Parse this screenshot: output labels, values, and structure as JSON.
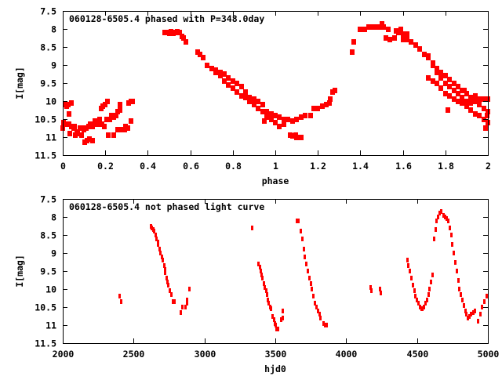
{
  "colors": {
    "points": "#ff0000",
    "axes": "#000000"
  },
  "chart_data": [
    {
      "type": "scatter",
      "title": "060128-6505.4 phased with P=348.0day",
      "xlabel": "phase",
      "ylabel": "I[mag]",
      "xlim": [
        0,
        2
      ],
      "ylim": [
        7.5,
        11.5
      ],
      "y_reversed": true,
      "xticks": [
        0,
        0.2,
        0.4,
        0.6,
        0.8,
        1,
        1.2,
        1.4,
        1.6,
        1.8,
        2
      ],
      "xtick_labels": [
        "0",
        "0.2",
        "0.4",
        "0.6",
        "0.8",
        "1",
        "1.2",
        "1.4",
        "1.6",
        "1.8",
        "2"
      ],
      "yticks": [
        7.5,
        8,
        8.5,
        9,
        9.5,
        10,
        10.5,
        11,
        11.5
      ],
      "ytick_labels": [
        "7.5",
        "8",
        "8.5",
        "9",
        "9.5",
        "10",
        "10.5",
        "11",
        "11.5"
      ],
      "grid": false,
      "points": [
        [
          0,
          10.75
        ],
        [
          0.005,
          10.6
        ],
        [
          0.01,
          10.1
        ],
        [
          0.015,
          10.65
        ],
        [
          0.02,
          10.15
        ],
        [
          0.025,
          10.1
        ],
        [
          0.03,
          10.35
        ],
        [
          0.03,
          10.65
        ],
        [
          0.035,
          10.9
        ],
        [
          0.04,
          10.7
        ],
        [
          0.04,
          10.05
        ],
        [
          0.05,
          10.75
        ],
        [
          0.055,
          10.7
        ],
        [
          0.06,
          10.95
        ],
        [
          0.065,
          10.85
        ],
        [
          0.07,
          10.9
        ],
        [
          0.08,
          10.75
        ],
        [
          0.09,
          10.75
        ],
        [
          0.09,
          10.95
        ],
        [
          0.1,
          10.8
        ],
        [
          0.105,
          11.15
        ],
        [
          0.11,
          10.75
        ],
        [
          0.115,
          11.1
        ],
        [
          0.12,
          10.7
        ],
        [
          0.125,
          11.05
        ],
        [
          0.13,
          10.65
        ],
        [
          0.14,
          11.1
        ],
        [
          0.14,
          10.7
        ],
        [
          0.15,
          10.55
        ],
        [
          0.16,
          10.65
        ],
        [
          0.17,
          10.65
        ],
        [
          0.175,
          10.5
        ],
        [
          0.18,
          10.2
        ],
        [
          0.185,
          10.65
        ],
        [
          0.19,
          10.15
        ],
        [
          0.195,
          10.7
        ],
        [
          0.2,
          10.1
        ],
        [
          0.205,
          10.5
        ],
        [
          0.21,
          10.0
        ],
        [
          0.215,
          10.95
        ],
        [
          0.22,
          10.5
        ],
        [
          0.23,
          10.4
        ],
        [
          0.24,
          10.45
        ],
        [
          0.24,
          10.95
        ],
        [
          0.25,
          10.4
        ],
        [
          0.26,
          10.3
        ],
        [
          0.26,
          10.8
        ],
        [
          0.27,
          10.25
        ],
        [
          0.27,
          10.1
        ],
        [
          0.28,
          10.8
        ],
        [
          0.29,
          10.8
        ],
        [
          0.295,
          10.7
        ],
        [
          0.305,
          10.75
        ],
        [
          0.31,
          10.05
        ],
        [
          0.32,
          10.0
        ],
        [
          0.32,
          10.55
        ],
        [
          0.33,
          10.0
        ],
        [
          0.48,
          8.1
        ],
        [
          0.49,
          8.1
        ],
        [
          0.5,
          8.12
        ],
        [
          0.51,
          8.08
        ],
        [
          0.52,
          8.12
        ],
        [
          0.53,
          8.1
        ],
        [
          0.54,
          8.08
        ],
        [
          0.55,
          8.1
        ],
        [
          0.56,
          8.2
        ],
        [
          0.57,
          8.25
        ],
        [
          0.58,
          8.35
        ],
        [
          0.635,
          8.65
        ],
        [
          0.645,
          8.7
        ],
        [
          0.66,
          8.8
        ],
        [
          0.68,
          9.0
        ],
        [
          0.7,
          9.1
        ],
        [
          0.72,
          9.2
        ],
        [
          0.74,
          9.3
        ],
        [
          0.76,
          9.45
        ],
        [
          0.78,
          9.55
        ],
        [
          0.8,
          9.65
        ],
        [
          0.82,
          9.75
        ],
        [
          0.84,
          9.85
        ],
        [
          0.86,
          9.9
        ],
        [
          0.88,
          10.0
        ],
        [
          0.9,
          10.1
        ],
        [
          0.92,
          10.2
        ],
        [
          0.94,
          10.3
        ],
        [
          0.96,
          10.4
        ],
        [
          0.98,
          10.5
        ],
        [
          1.0,
          10.6
        ],
        [
          1.02,
          10.7
        ],
        [
          1.04,
          10.65
        ],
        [
          0.72,
          9.15
        ],
        [
          0.74,
          9.2
        ],
        [
          0.76,
          9.25
        ],
        [
          0.78,
          9.35
        ],
        [
          0.8,
          9.45
        ],
        [
          0.82,
          9.5
        ],
        [
          0.84,
          9.6
        ],
        [
          0.86,
          9.75
        ],
        [
          0.88,
          9.9
        ],
        [
          0.9,
          9.95
        ],
        [
          0.92,
          10.0
        ],
        [
          0.94,
          10.1
        ],
        [
          0.96,
          10.3
        ],
        [
          0.98,
          10.35
        ],
        [
          1.0,
          10.4
        ],
        [
          1.02,
          10.45
        ],
        [
          1.04,
          10.5
        ],
        [
          1.06,
          10.5
        ],
        [
          1.08,
          10.55
        ],
        [
          1.1,
          10.5
        ],
        [
          1.12,
          10.45
        ],
        [
          1.14,
          10.4
        ],
        [
          0.95,
          10.55
        ],
        [
          0.97,
          10.45
        ],
        [
          1.07,
          10.95
        ],
        [
          1.08,
          10.97
        ],
        [
          1.095,
          10.95
        ],
        [
          1.1,
          11.0
        ],
        [
          1.12,
          11.0
        ],
        [
          1.165,
          10.4
        ],
        [
          1.18,
          10.2
        ],
        [
          1.2,
          10.2
        ],
        [
          1.22,
          10.15
        ],
        [
          1.24,
          10.1
        ],
        [
          1.255,
          10.05
        ],
        [
          1.26,
          9.95
        ],
        [
          1.27,
          9.75
        ],
        [
          1.28,
          9.7
        ],
        [
          1.36,
          8.65
        ],
        [
          1.37,
          8.35
        ],
        [
          1.4,
          8.0
        ],
        [
          1.42,
          8.0
        ],
        [
          1.44,
          7.95
        ],
        [
          1.45,
          7.95
        ],
        [
          1.47,
          7.95
        ],
        [
          1.49,
          7.95
        ],
        [
          1.5,
          7.85
        ],
        [
          1.51,
          7.95
        ],
        [
          1.53,
          8.0
        ],
        [
          1.52,
          8.25
        ],
        [
          1.54,
          8.3
        ],
        [
          1.56,
          8.25
        ],
        [
          1.57,
          8.05
        ],
        [
          1.58,
          8.1
        ],
        [
          1.59,
          8.0
        ],
        [
          1.6,
          8.15
        ],
        [
          1.62,
          8.15
        ],
        [
          1.6,
          8.3
        ],
        [
          1.62,
          8.3
        ],
        [
          1.64,
          8.35
        ],
        [
          1.66,
          8.45
        ],
        [
          1.68,
          8.55
        ],
        [
          1.7,
          8.7
        ],
        [
          1.72,
          8.8
        ],
        [
          1.74,
          8.95
        ],
        [
          1.76,
          9.1
        ],
        [
          1.78,
          9.2
        ],
        [
          1.8,
          9.3
        ],
        [
          1.82,
          9.4
        ],
        [
          1.84,
          9.5
        ],
        [
          1.86,
          9.6
        ],
        [
          1.88,
          9.7
        ],
        [
          1.9,
          9.8
        ],
        [
          1.92,
          9.9
        ],
        [
          1.94,
          10.0
        ],
        [
          1.96,
          10.1
        ],
        [
          1.98,
          10.2
        ],
        [
          2.0,
          10.3
        ],
        [
          1.72,
          9.35
        ],
        [
          1.74,
          9.45
        ],
        [
          1.76,
          9.5
        ],
        [
          1.78,
          9.65
        ],
        [
          1.8,
          9.8
        ],
        [
          1.82,
          9.85
        ],
        [
          1.84,
          9.95
        ],
        [
          1.86,
          10.0
        ],
        [
          1.88,
          10.05
        ],
        [
          1.9,
          10.15
        ],
        [
          1.92,
          10.25
        ],
        [
          1.94,
          10.35
        ],
        [
          1.96,
          10.4
        ],
        [
          1.98,
          10.5
        ],
        [
          2.0,
          10.6
        ],
        [
          1.72,
          8.75
        ],
        [
          1.74,
          9.0
        ],
        [
          1.76,
          9.2
        ],
        [
          1.78,
          9.35
        ],
        [
          1.8,
          9.5
        ],
        [
          1.82,
          9.6
        ],
        [
          1.84,
          9.7
        ],
        [
          1.86,
          9.8
        ],
        [
          1.88,
          9.9
        ],
        [
          1.9,
          10.0
        ],
        [
          1.92,
          10.05
        ],
        [
          1.94,
          9.85
        ],
        [
          1.96,
          9.95
        ],
        [
          1.98,
          9.95
        ],
        [
          2.0,
          9.95
        ],
        [
          1.81,
          10.25
        ],
        [
          1.89,
          9.7
        ],
        [
          1.995,
          10.4
        ],
        [
          1.99,
          10.75
        ]
      ]
    },
    {
      "type": "scatter",
      "title": "060128-6505.4 not phased light curve",
      "xlabel": "hjd0",
      "ylabel": "I[mag]",
      "xlim": [
        2000,
        5000
      ],
      "ylim": [
        7.5,
        11.5
      ],
      "y_reversed": true,
      "xticks": [
        2000,
        2500,
        3000,
        3500,
        4000,
        4500,
        5000
      ],
      "xtick_labels": [
        "2000",
        "2500",
        "3000",
        "3500",
        "4000",
        "4500",
        "5000"
      ],
      "yticks": [
        7.5,
        8,
        8.5,
        9,
        9.5,
        10,
        10.5,
        11,
        11.5
      ],
      "ytick_labels": [
        "7.5",
        "8",
        "8.5",
        "9",
        "9.5",
        "10",
        "10.5",
        "11",
        "11.5"
      ],
      "grid": false,
      "points": [
        [
          2400,
          10.2
        ],
        [
          2415,
          10.35
        ],
        [
          2620,
          8.25
        ],
        [
          2630,
          8.3
        ],
        [
          2640,
          8.35
        ],
        [
          2645,
          8.4
        ],
        [
          2655,
          8.5
        ],
        [
          2660,
          8.6
        ],
        [
          2670,
          8.7
        ],
        [
          2675,
          8.75
        ],
        [
          2685,
          8.9
        ],
        [
          2690,
          9.0
        ],
        [
          2700,
          9.1
        ],
        [
          2705,
          9.2
        ],
        [
          2715,
          9.35
        ],
        [
          2720,
          9.45
        ],
        [
          2725,
          9.55
        ],
        [
          2735,
          9.7
        ],
        [
          2740,
          9.8
        ],
        [
          2745,
          9.9
        ],
        [
          2755,
          10.05
        ],
        [
          2765,
          10.15
        ],
        [
          2780,
          10.35
        ],
        [
          2790,
          10.35
        ],
        [
          2835,
          10.65
        ],
        [
          2845,
          10.5
        ],
        [
          2865,
          10.5
        ],
        [
          2875,
          10.4
        ],
        [
          2880,
          10.3
        ],
        [
          2895,
          10.0
        ],
        [
          3335,
          8.3
        ],
        [
          3380,
          9.3
        ],
        [
          3390,
          9.4
        ],
        [
          3395,
          9.5
        ],
        [
          3405,
          9.6
        ],
        [
          3410,
          9.7
        ],
        [
          3420,
          9.85
        ],
        [
          3425,
          9.95
        ],
        [
          3435,
          10.05
        ],
        [
          3440,
          10.15
        ],
        [
          3450,
          10.3
        ],
        [
          3455,
          10.4
        ],
        [
          3465,
          10.5
        ],
        [
          3470,
          10.55
        ],
        [
          3480,
          10.75
        ],
        [
          3490,
          10.85
        ],
        [
          3495,
          10.95
        ],
        [
          3505,
          11.0
        ],
        [
          3510,
          11.1
        ],
        [
          3520,
          11.1
        ],
        [
          3540,
          10.85
        ],
        [
          3550,
          10.8
        ],
        [
          3555,
          10.6
        ],
        [
          3650,
          8.1
        ],
        [
          3665,
          8.1
        ],
        [
          3680,
          8.4
        ],
        [
          3690,
          8.6
        ],
        [
          3700,
          8.9
        ],
        [
          3710,
          9.1
        ],
        [
          3720,
          9.3
        ],
        [
          3730,
          9.5
        ],
        [
          3740,
          9.7
        ],
        [
          3750,
          9.85
        ],
        [
          3760,
          10.0
        ],
        [
          3770,
          10.2
        ],
        [
          3780,
          10.4
        ],
        [
          3790,
          10.5
        ],
        [
          3800,
          10.6
        ],
        [
          3810,
          10.7
        ],
        [
          3820,
          10.8
        ],
        [
          3840,
          10.95
        ],
        [
          3850,
          11.0
        ],
        [
          3860,
          11.0
        ],
        [
          4170,
          9.95
        ],
        [
          4180,
          10.05
        ],
        [
          4240,
          10.0
        ],
        [
          4245,
          10.1
        ],
        [
          4430,
          9.2
        ],
        [
          4440,
          9.35
        ],
        [
          4450,
          9.5
        ],
        [
          4460,
          9.7
        ],
        [
          4470,
          9.9
        ],
        [
          4480,
          10.05
        ],
        [
          4490,
          10.2
        ],
        [
          4500,
          10.3
        ],
        [
          4510,
          10.4
        ],
        [
          4520,
          10.5
        ],
        [
          4530,
          10.55
        ],
        [
          4540,
          10.55
        ],
        [
          4550,
          10.5
        ],
        [
          4560,
          10.4
        ],
        [
          4570,
          10.3
        ],
        [
          4580,
          10.15
        ],
        [
          4590,
          10.0
        ],
        [
          4600,
          9.8
        ],
        [
          4610,
          9.6
        ],
        [
          4620,
          8.6
        ],
        [
          4630,
          8.35
        ],
        [
          4640,
          8.1
        ],
        [
          4650,
          8.0
        ],
        [
          4660,
          7.9
        ],
        [
          4670,
          7.85
        ],
        [
          4685,
          7.95
        ],
        [
          4700,
          8.0
        ],
        [
          4710,
          8.05
        ],
        [
          4720,
          8.1
        ],
        [
          4730,
          8.3
        ],
        [
          4740,
          8.5
        ],
        [
          4750,
          8.75
        ],
        [
          4760,
          9.0
        ],
        [
          4770,
          9.25
        ],
        [
          4780,
          9.5
        ],
        [
          4790,
          9.75
        ],
        [
          4800,
          10.0
        ],
        [
          4810,
          10.15
        ],
        [
          4820,
          10.3
        ],
        [
          4830,
          10.45
        ],
        [
          4840,
          10.6
        ],
        [
          4850,
          10.7
        ],
        [
          4860,
          10.8
        ],
        [
          4870,
          10.75
        ],
        [
          4880,
          10.7
        ],
        [
          4895,
          10.65
        ],
        [
          4910,
          10.6
        ],
        [
          4930,
          10.9
        ],
        [
          4945,
          10.7
        ],
        [
          4960,
          10.5
        ],
        [
          4975,
          10.35
        ],
        [
          4990,
          10.2
        ]
      ]
    }
  ]
}
